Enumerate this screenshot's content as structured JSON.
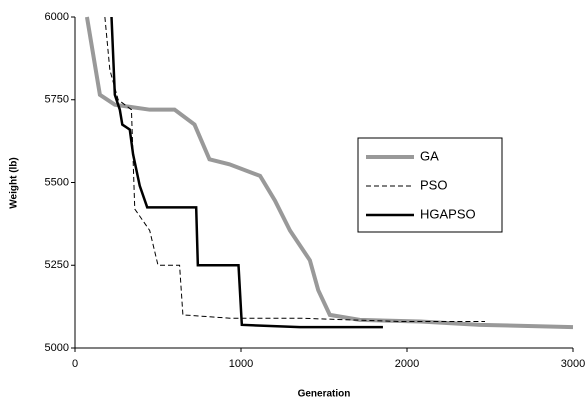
{
  "chart_data": {
    "type": "line",
    "x_label": "Generation",
    "y_label": "Weight (lb)",
    "xlim": [
      0,
      3000
    ],
    "xticks": [
      0,
      1000,
      2000,
      3000
    ],
    "ylim": [
      5000,
      6000
    ],
    "yticks": [
      5000,
      5250,
      5500,
      5750,
      6000
    ],
    "grid": false,
    "legend": "right",
    "series": [
      {
        "name": "GA",
        "color": "#999999",
        "style": "thick",
        "x": [
          72,
          150,
          240,
          450,
          600,
          720,
          810,
          930,
          1115,
          1205,
          1295,
          1415,
          1465,
          1535,
          1715,
          2080,
          2440,
          3000
        ],
        "values": [
          6000,
          5765,
          5735,
          5720,
          5720,
          5675,
          5570,
          5555,
          5520,
          5445,
          5355,
          5265,
          5175,
          5100,
          5085,
          5080,
          5070,
          5063
        ]
      },
      {
        "name": "PSO",
        "color": "#000000",
        "style": "dashed",
        "x": [
          180,
          210,
          260,
          340,
          360,
          450,
          500,
          630,
          650,
          935,
          1355,
          1960,
          2470
        ],
        "values": [
          6000,
          5840,
          5750,
          5720,
          5420,
          5355,
          5250,
          5250,
          5100,
          5090,
          5090,
          5080,
          5080
        ]
      },
      {
        "name": "HGAPSO",
        "color": "#000000",
        "style": "thick",
        "x": [
          220,
          240,
          270,
          285,
          330,
          350,
          390,
          435,
          730,
          740,
          985,
          1005,
          1355,
          1855
        ],
        "values": [
          6000,
          5765,
          5720,
          5675,
          5660,
          5585,
          5490,
          5425,
          5425,
          5250,
          5250,
          5070,
          5063,
          5063
        ]
      }
    ]
  }
}
